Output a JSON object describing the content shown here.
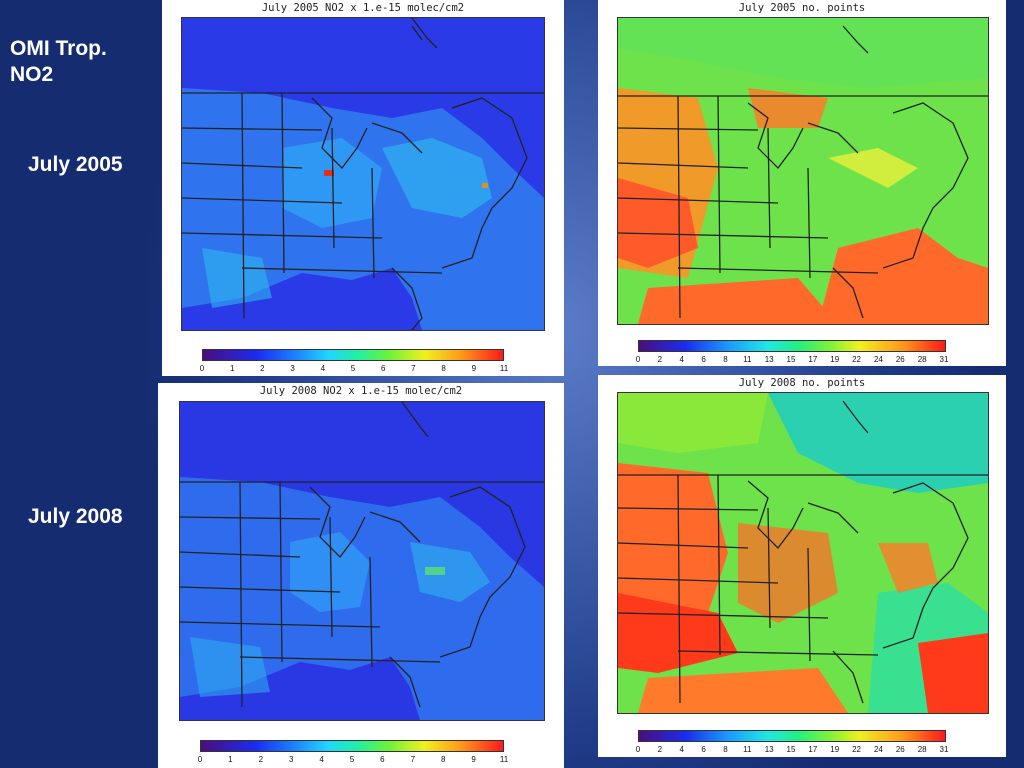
{
  "slide": {
    "title": "OMI Trop.\nNO2",
    "rows": [
      {
        "label": "July 2005"
      },
      {
        "label": "July 2008"
      }
    ]
  },
  "panels": {
    "no2_2005": {
      "title": "July 2005 NO2 x 1.e-15 molec/cm2",
      "ticks": [
        "0",
        "1",
        "2",
        "3",
        "4",
        "5",
        "6",
        "7",
        "8",
        "9",
        "11"
      ]
    },
    "pts_2005": {
      "title": "July 2005 no. points",
      "ticks": [
        "0",
        "2",
        "4",
        "6",
        "8",
        "11",
        "13",
        "15",
        "17",
        "19",
        "22",
        "24",
        "26",
        "28",
        "31"
      ]
    },
    "no2_2008": {
      "title": "July 2008 NO2 x 1.e-15 molec/cm2",
      "ticks": [
        "0",
        "1",
        "2",
        "3",
        "4",
        "5",
        "6",
        "7",
        "8",
        "9",
        "11"
      ]
    },
    "pts_2008": {
      "title": "July 2008 no. points",
      "ticks": [
        "0",
        "2",
        "4",
        "6",
        "8",
        "11",
        "13",
        "15",
        "17",
        "19",
        "22",
        "24",
        "26",
        "28",
        "31"
      ]
    }
  },
  "colors": {
    "no2_background": "#2a3ae6",
    "no2_land": "#2f7bf0",
    "points_background": "#6ee24a",
    "points_hot": "#ff5a1a",
    "borders": "#222222"
  }
}
